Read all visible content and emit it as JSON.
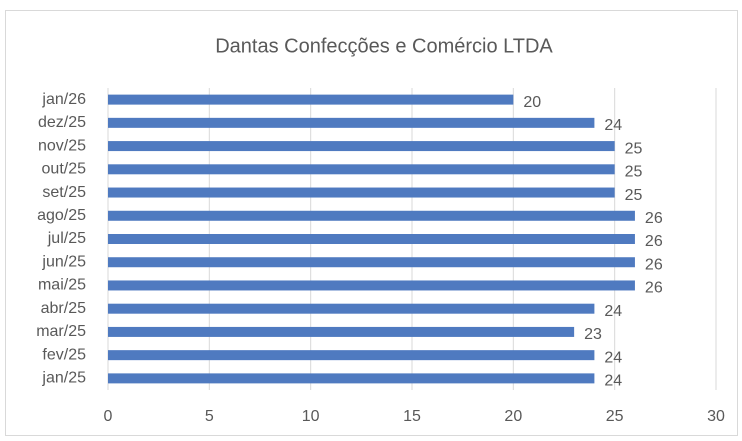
{
  "chart_data": {
    "type": "bar",
    "horizontal": true,
    "title": "Dantas Confecções e Comércio LTDA",
    "categories": [
      "jan/25",
      "fev/25",
      "mar/25",
      "abr/25",
      "mai/25",
      "jun/25",
      "jul/25",
      "ago/25",
      "set/25",
      "out/25",
      "nov/25",
      "dez/25",
      "jan/26"
    ],
    "values": [
      24,
      24,
      23,
      24,
      26,
      26,
      26,
      26,
      25,
      25,
      25,
      24,
      20
    ],
    "color": "#4f7ac0",
    "xlim": [
      0,
      30
    ],
    "xticks": [
      0,
      5,
      10,
      15,
      20,
      25,
      30
    ],
    "grid": true
  }
}
